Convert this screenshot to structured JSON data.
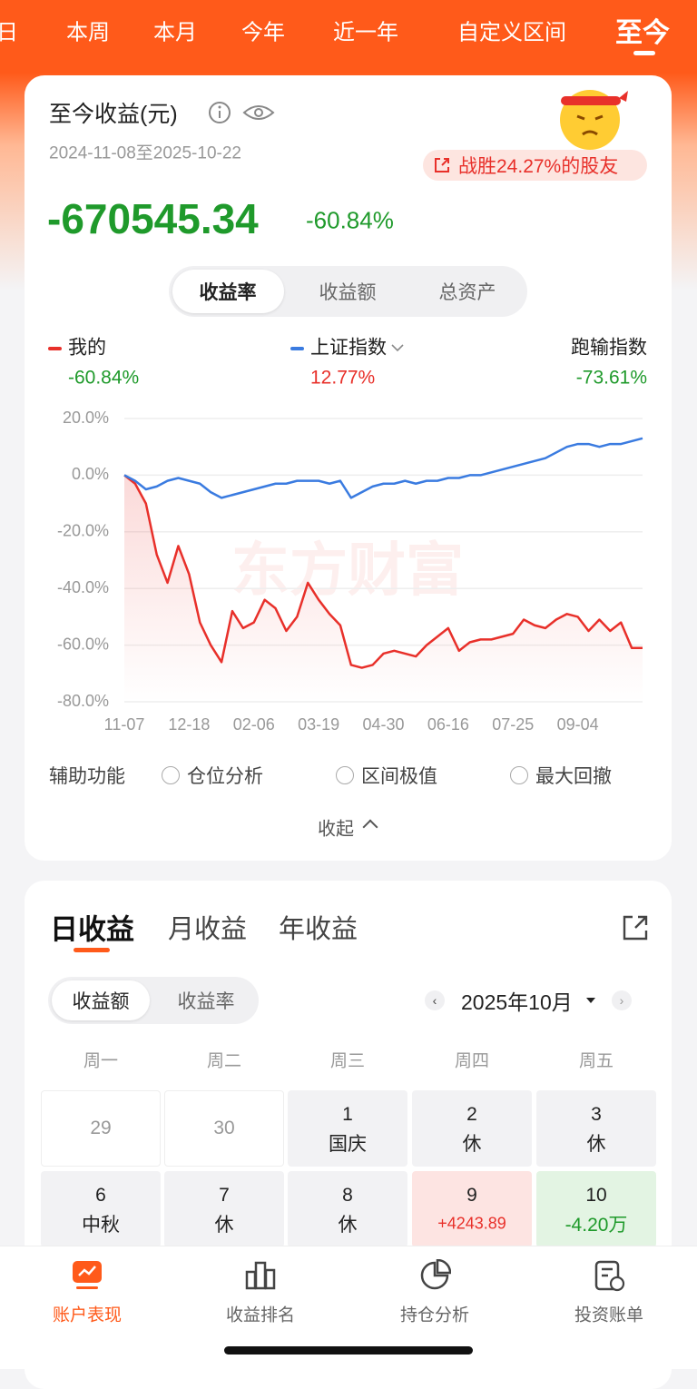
{
  "tabs": [
    "日",
    "本周",
    "本月",
    "今年",
    "近一年",
    "自定义区间",
    "至今"
  ],
  "summary": {
    "title": "至今收益(元)",
    "date_range": "2024-11-08至2025-10-22",
    "beat": "战胜24.27%的股友",
    "profit": "-670545.34",
    "profit_rate": "-60.84%",
    "views": [
      "收益率",
      "收益额",
      "总资产"
    ]
  },
  "chart_data": {
    "type": "line",
    "watermark": "东方财富",
    "categories": [
      "11-07",
      null,
      null,
      null,
      null,
      null,
      "12-18",
      null,
      null,
      null,
      null,
      null,
      "02-06",
      null,
      null,
      null,
      null,
      null,
      "03-19",
      null,
      null,
      null,
      null,
      null,
      "04-30",
      null,
      null,
      null,
      null,
      null,
      "06-16",
      null,
      null,
      null,
      null,
      null,
      "07-25",
      null,
      null,
      null,
      null,
      null,
      "09-04",
      null,
      null,
      null,
      null,
      null,
      null
    ],
    "series": [
      {
        "name": "我的",
        "color": "#e8302a",
        "return": "-60.84%",
        "values": [
          0,
          -3,
          -10,
          -28,
          -38,
          -25,
          -35,
          -52,
          -60,
          -66,
          -48,
          -54,
          -52,
          -44,
          -47,
          -55,
          -50,
          -38,
          -44,
          -49,
          -53,
          -67,
          -68,
          -67,
          -63,
          -62,
          -63,
          -64,
          -60,
          -57,
          -54,
          -62,
          -59,
          -58,
          -58,
          -57,
          -56,
          -51,
          -53,
          -54,
          -51,
          -49,
          -50,
          -55,
          -51,
          -55,
          -52,
          -61,
          -61
        ]
      },
      {
        "name": "上证指数",
        "color": "#3a7be0",
        "return": "12.77%",
        "values": [
          0,
          -2,
          -5,
          -4,
          -2,
          -1,
          -2,
          -3,
          -6,
          -8,
          -7,
          -6,
          -5,
          -4,
          -3,
          -3,
          -2,
          -2,
          -2,
          -3,
          -2,
          -8,
          -6,
          -4,
          -3,
          -3,
          -2,
          -3,
          -2,
          -2,
          -1,
          -1,
          0,
          0,
          1,
          2,
          3,
          4,
          5,
          6,
          8,
          10,
          11,
          11,
          10,
          11,
          11,
          12,
          13
        ]
      }
    ],
    "compare": {
      "label": "跑输指数",
      "value": "-73.61%"
    },
    "ylim": [
      -80,
      20
    ],
    "yticks": [
      {
        "value": 20,
        "label": "20.0%"
      },
      {
        "value": 0,
        "label": "0.0%"
      },
      {
        "value": -20,
        "label": "-20.0%"
      },
      {
        "value": -40,
        "label": "-40.0%"
      },
      {
        "value": -60,
        "label": "-60.0%"
      },
      {
        "value": -80,
        "label": "-80.0%"
      }
    ],
    "grid": true
  },
  "aux": {
    "label": "辅助功能",
    "options": [
      "仓位分析",
      "区间极值",
      "最大回撤"
    ],
    "collapse": "收起"
  },
  "calendar": {
    "tabs": [
      "日收益",
      "月收益",
      "年收益"
    ],
    "modes": [
      "收益额",
      "收益率"
    ],
    "month": "2025年10月",
    "weekdays": [
      "周一",
      "周二",
      "周三",
      "周四",
      "周五"
    ],
    "rows": [
      [
        {
          "day": "29"
        },
        {
          "day": "30"
        },
        {
          "day": "1",
          "note": "国庆"
        },
        {
          "day": "2",
          "note": "休"
        },
        {
          "day": "3",
          "note": "休"
        }
      ],
      [
        {
          "day": "6",
          "note": "中秋"
        },
        {
          "day": "7",
          "note": "休"
        },
        {
          "day": "8",
          "note": "休"
        },
        {
          "day": "9",
          "note": "+4243.89"
        },
        {
          "day": "10",
          "note": "-4.20万"
        }
      ]
    ]
  },
  "nav": [
    "账户表现",
    "收益排名",
    "持仓分析",
    "投资账单"
  ]
}
